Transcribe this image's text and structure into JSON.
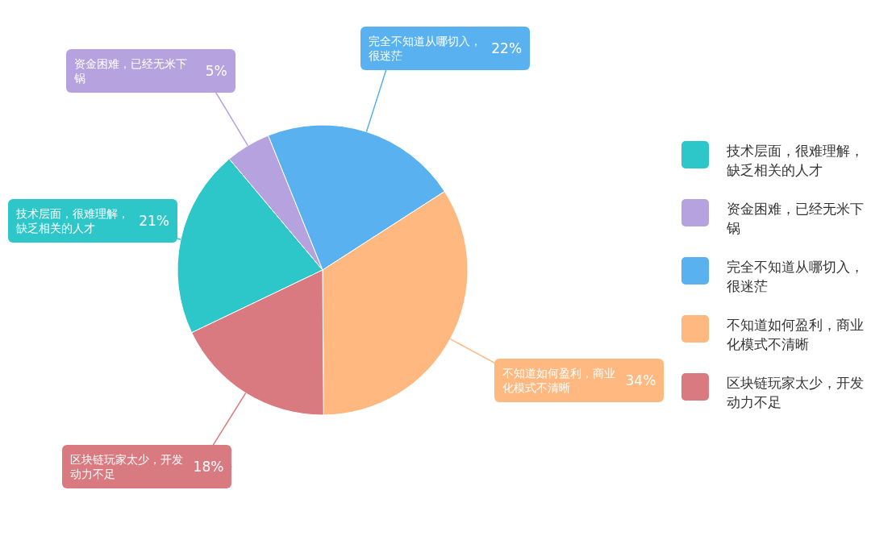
{
  "chart_data": {
    "type": "pie",
    "categories": [
      "技术层面，很难理解，缺乏相关的人才",
      "资金困难，已经无米下锅",
      "完全不知道从哪切入，很迷茫",
      "不知道如何盈利，商业化模式不清晰",
      "区块链玩家太少，开发动力不足"
    ],
    "values": [
      21,
      5,
      22,
      34,
      18
    ],
    "colors": [
      "#2ec7c9",
      "#b6a2de",
      "#5ab1ef",
      "#ffb980",
      "#d87a80"
    ],
    "value_labels": [
      "21%",
      "5%",
      "22%",
      "34%",
      "18%"
    ],
    "legend": "right"
  }
}
